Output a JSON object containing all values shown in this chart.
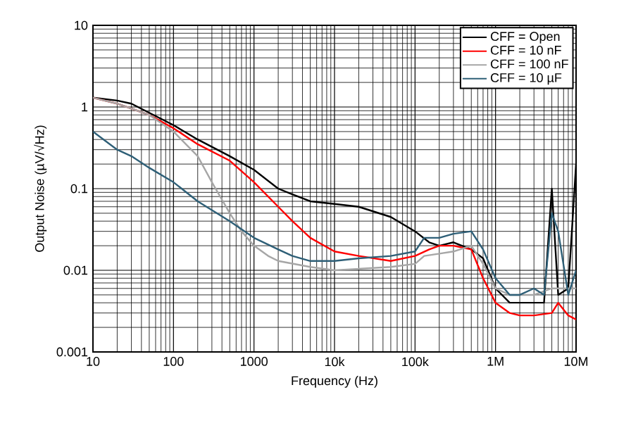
{
  "chart_data": {
    "type": "line",
    "xlabel": "Frequency (Hz)",
    "ylabel": "Output Noise  (µV/√Hz)",
    "log": "xy",
    "grid": true,
    "legend": "top right",
    "marker": "none",
    "line_style": "solid",
    "xlim": [
      10,
      10000000
    ],
    "ylim": [
      0.001,
      10
    ],
    "xticks": [
      10,
      100,
      1000,
      {
        "value": 10000,
        "label": "10k"
      },
      {
        "value": 100000,
        "label": "100k"
      },
      {
        "value": 1000000,
        "label": "1M"
      },
      {
        "value": 10000000,
        "label": "10M"
      }
    ],
    "yticks": [
      0.001,
      0.01,
      0.1,
      1,
      10
    ],
    "series": [
      {
        "name": "CFF = Open",
        "color": "#000000",
        "x": [
          10,
          20,
          30,
          50,
          100,
          200,
          500,
          1000,
          2000,
          3000,
          5000,
          10000,
          20000,
          50000,
          100000,
          150000,
          200000,
          300000,
          500000,
          700000,
          1000000,
          1500000,
          2000000,
          3000000,
          4000000,
          5000000,
          6000000,
          8000000,
          10000000
        ],
        "values": [
          1.3,
          1.2,
          1.1,
          0.85,
          0.6,
          0.4,
          0.25,
          0.17,
          0.1,
          0.085,
          0.07,
          0.065,
          0.06,
          0.045,
          0.03,
          0.022,
          0.02,
          0.022,
          0.018,
          0.014,
          0.006,
          0.004,
          0.004,
          0.004,
          0.004,
          0.1,
          0.005,
          0.006,
          0.2
        ]
      },
      {
        "name": "CFF = 10 nF",
        "color": "#ff0000",
        "x": [
          10,
          20,
          50,
          100,
          200,
          500,
          1000,
          2000,
          3000,
          5000,
          10000,
          20000,
          50000,
          100000,
          150000,
          200000,
          300000,
          500000,
          700000,
          1000000,
          1500000,
          2000000,
          3000000,
          5000000,
          6000000,
          8000000,
          10000000
        ],
        "values": [
          1.3,
          1.1,
          0.8,
          0.55,
          0.35,
          0.22,
          0.12,
          0.06,
          0.04,
          0.025,
          0.017,
          0.015,
          0.013,
          0.015,
          0.018,
          0.02,
          0.02,
          0.018,
          0.008,
          0.004,
          0.003,
          0.0028,
          0.0028,
          0.003,
          0.004,
          0.0028,
          0.0025
        ]
      },
      {
        "name": "CFF = 100 nF",
        "color": "#a6a6a6",
        "x": [
          10,
          20,
          50,
          100,
          200,
          300,
          500,
          700,
          1000,
          1500,
          2000,
          5000,
          10000,
          50000,
          100000,
          130000,
          200000,
          300000,
          500000,
          700000,
          1000000,
          1500000,
          2000000,
          3000000,
          5000000,
          10000000
        ],
        "values": [
          1.3,
          1.1,
          0.8,
          0.5,
          0.25,
          0.12,
          0.05,
          0.03,
          0.02,
          0.015,
          0.013,
          0.011,
          0.01,
          0.011,
          0.012,
          0.015,
          0.016,
          0.017,
          0.02,
          0.012,
          0.006,
          0.005,
          0.005,
          0.005,
          0.006,
          0.006
        ]
      },
      {
        "name": "CFF = 10 µF",
        "color": "#2e5f77",
        "x": [
          10,
          20,
          30,
          50,
          100,
          200,
          500,
          1000,
          2000,
          3000,
          5000,
          10000,
          20000,
          50000,
          100000,
          130000,
          200000,
          300000,
          500000,
          700000,
          1000000,
          1500000,
          2000000,
          3000000,
          4000000,
          5000000,
          6000000,
          8000000,
          10000000
        ],
        "values": [
          0.5,
          0.3,
          0.25,
          0.18,
          0.12,
          0.07,
          0.04,
          0.025,
          0.018,
          0.015,
          0.013,
          0.013,
          0.014,
          0.015,
          0.017,
          0.025,
          0.025,
          0.028,
          0.03,
          0.018,
          0.008,
          0.005,
          0.005,
          0.006,
          0.005,
          0.05,
          0.03,
          0.005,
          0.01
        ]
      }
    ]
  }
}
